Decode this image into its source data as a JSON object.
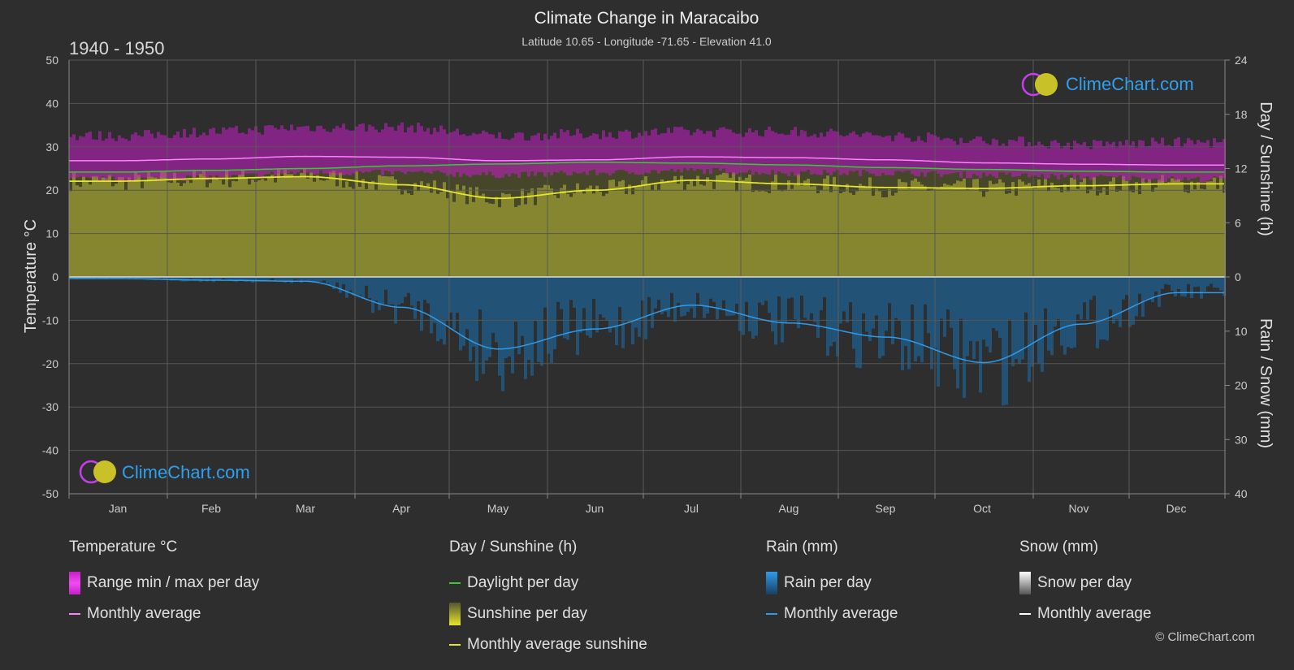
{
  "header": {
    "title": "Climate Change in Maracaibo",
    "subtitle": "Latitude 10.65 - Longitude -71.65 - Elevation 41.0",
    "period": "1940 - 1950"
  },
  "brand": {
    "logo_text": "ClimeChart.com",
    "copyright": "© ClimeChart.com"
  },
  "colors": {
    "background": "#2e2e2e",
    "temp_range": "#c81ec8",
    "temp_avg": "#ff80ff",
    "daylight": "#33cc33",
    "sunshine_fill": "#8a8a30",
    "sunshine_avg": "#e6e62a",
    "rain_fill": "#1f5f8f",
    "rain_avg": "#2f9be8",
    "snow_avg": "#ffffff",
    "logo_text": "#2fa0ee"
  },
  "legend": {
    "temperature": {
      "title": "Temperature °C",
      "range": "Range min / max per day",
      "avg": "Monthly average"
    },
    "sun": {
      "title": "Day / Sunshine (h)",
      "daylight": "Daylight per day",
      "sunshine": "Sunshine per day",
      "avg": "Monthly average sunshine"
    },
    "rain": {
      "title": "Rain (mm)",
      "per_day": "Rain per day",
      "avg": "Monthly average"
    },
    "snow": {
      "title": "Snow (mm)",
      "per_day": "Snow per day",
      "avg": "Monthly average"
    }
  },
  "chart_data": {
    "type": "line",
    "left_axis": {
      "label": "Temperature °C",
      "min": -50,
      "max": 50,
      "ticks": [
        50,
        40,
        30,
        20,
        10,
        0,
        -10,
        -20,
        -30,
        -40,
        -50
      ]
    },
    "right_axis_top": {
      "label": "Day / Sunshine (h)",
      "min": 0,
      "max": 24,
      "ticks": [
        24,
        18,
        12,
        6,
        0
      ]
    },
    "right_axis_bottom": {
      "label": "Rain / Snow (mm)",
      "min": 0,
      "max": 40,
      "ticks": [
        0,
        10,
        20,
        30,
        40
      ]
    },
    "categories": [
      "Jan",
      "Feb",
      "Mar",
      "Apr",
      "May",
      "Jun",
      "Jul",
      "Aug",
      "Sep",
      "Oct",
      "Nov",
      "Dec"
    ],
    "grid": true,
    "series": [
      {
        "name": "Range min / max per day",
        "unit": "°C",
        "min": [
          22.5,
          23,
          24,
          24,
          23.5,
          24,
          24.5,
          24,
          24,
          23.5,
          23,
          22.5
        ],
        "max": [
          32,
          33,
          34,
          34,
          32,
          32.5,
          33,
          33,
          32,
          31,
          30,
          30.5
        ]
      },
      {
        "name": "Monthly average",
        "unit": "°C",
        "values": [
          26.8,
          27.2,
          27.8,
          27.6,
          26.8,
          27,
          27.7,
          27.5,
          27,
          26.3,
          26,
          25.8
        ]
      },
      {
        "name": "Daylight per day",
        "unit": "h",
        "values": [
          11.6,
          11.8,
          12.0,
          12.3,
          12.5,
          12.7,
          12.6,
          12.4,
          12.1,
          11.9,
          11.7,
          11.6
        ]
      },
      {
        "name": "Monthly average sunshine",
        "unit": "h",
        "values": [
          10.6,
          10.9,
          11.1,
          10.2,
          8.7,
          9.6,
          10.7,
          10.3,
          9.9,
          9.8,
          10.1,
          10.3
        ]
      },
      {
        "name": "Rain monthly average",
        "unit": "mm",
        "values": [
          0.3,
          0.6,
          0.8,
          5.6,
          13.3,
          9.6,
          5.2,
          8.5,
          11.1,
          15.8,
          8.7,
          2.9
        ]
      },
      {
        "name": "Snow monthly average",
        "unit": "mm",
        "values": [
          0,
          0,
          0,
          0,
          0,
          0,
          0,
          0,
          0,
          0,
          0,
          0
        ]
      }
    ]
  }
}
